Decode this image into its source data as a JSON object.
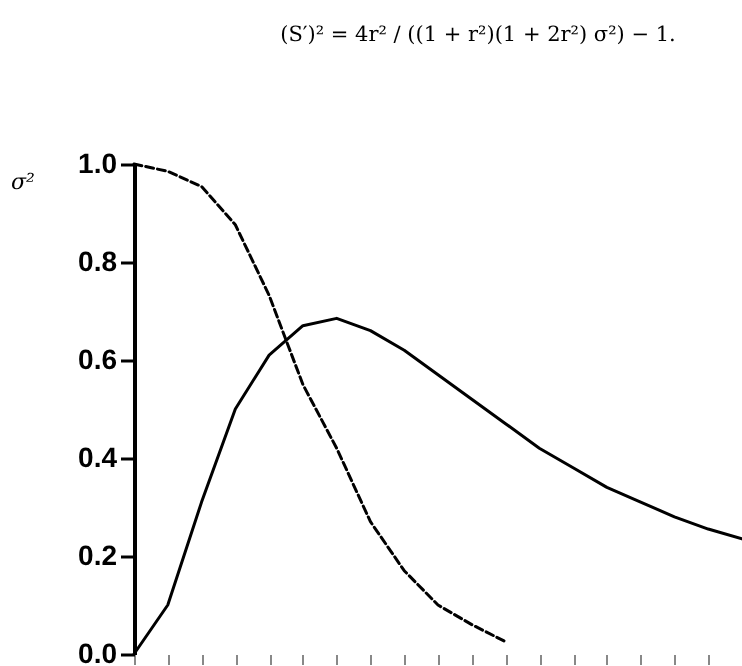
{
  "chart_data": {
    "type": "line",
    "title": "(S′)² = 4r² / ((1 + r²)(1 + 2r²) σ²) − 1.",
    "ylabel": "σ²",
    "categories": [
      null,
      null,
      null,
      null,
      null,
      null,
      null,
      null,
      null,
      null,
      null,
      null,
      null,
      null,
      null,
      null,
      null,
      null,
      null
    ],
    "series": [
      {
        "color": "#000000",
        "line_style": "dashed",
        "values": [
          1.0,
          0.985,
          0.954,
          0.876,
          0.732,
          0.55,
          0.42,
          0.27,
          0.17,
          0.1,
          0.06,
          0.025,
          null,
          null,
          null,
          null,
          null,
          null,
          null
        ]
      },
      {
        "color": "#000000",
        "line_style": "solid",
        "values": [
          0.0,
          0.1,
          0.31,
          0.5,
          0.61,
          0.67,
          0.685,
          0.66,
          0.62,
          0.57,
          0.52,
          0.47,
          0.42,
          0.38,
          0.34,
          0.31,
          0.28,
          0.255,
          0.235
        ]
      }
    ],
    "ylim": [
      0,
      1
    ],
    "yticks": [
      {
        "value": 0,
        "label": "0.0"
      },
      {
        "value": 0.2,
        "label": "0.2"
      },
      {
        "value": 0.4,
        "label": "0.4"
      },
      {
        "value": 0.6,
        "label": "0.6"
      },
      {
        "value": 0.8,
        "label": "0.8"
      },
      {
        "value": 1,
        "label": "1.0"
      }
    ],
    "grid": false
  }
}
